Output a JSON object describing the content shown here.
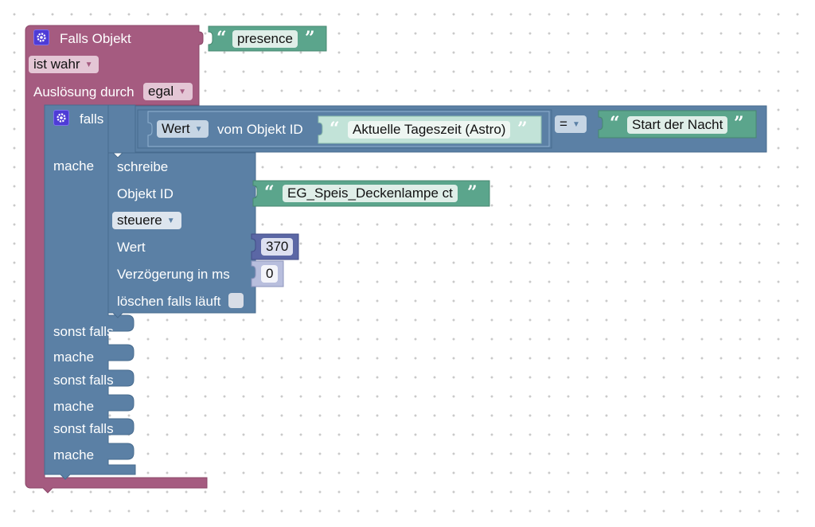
{
  "trigger_block": {
    "title": "Falls Objekt",
    "object_id": "presence",
    "condition": "ist wahr",
    "trigger_label": "Auslösung durch",
    "trigger_value": "egal",
    "color": "#a55b80"
  },
  "if_block": {
    "falls_label": "falls",
    "mache_label": "mache",
    "else_if_labels": [
      "sonst falls",
      "sonst falls",
      "sonst falls"
    ],
    "else_mache_labels": [
      "mache",
      "mache",
      "mache"
    ],
    "color": "#5b80a5"
  },
  "compare_block": {
    "value_dropdown": "Wert",
    "from_object_label": "vom Objekt ID",
    "object_id": "Aktuelle Tageszeit (Astro)",
    "operator": "=",
    "compare_text": "Start der Nacht"
  },
  "write_block": {
    "title": "schreibe",
    "object_id_label": "Objekt ID",
    "object_id": "EG_Speis_Deckenlampe ct",
    "mode": "steuere",
    "value_label": "Wert",
    "value": "370",
    "delay_label": "Verzögerung in ms",
    "delay": "0",
    "clear_label": "löschen falls läuft"
  },
  "colors": {
    "text_block": "#5ba58c",
    "text_block_light": "#c2e3d8",
    "number_block": "#5b67a5",
    "number_light": "#b8bedd"
  }
}
